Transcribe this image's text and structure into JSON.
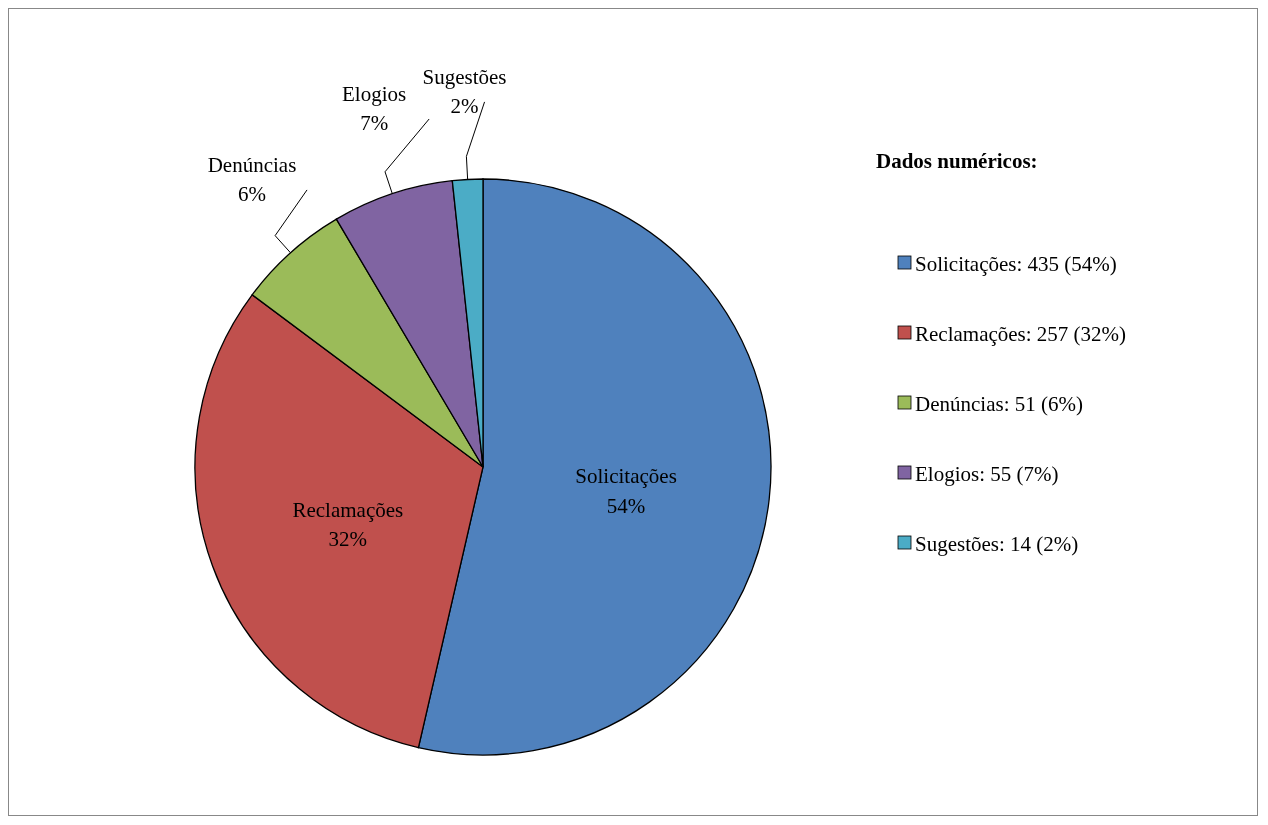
{
  "chart_data": [
    {
      "type": "pie",
      "categories": [
        "Solicitações",
        "Reclamações",
        "Denúncias",
        "Elogios",
        "Sugestões"
      ],
      "values": [
        53.6,
        31.6,
        6.3,
        6.8,
        1.7
      ],
      "value_labels": [
        "54%",
        "32%",
        "6%",
        "7%",
        "2%"
      ],
      "colors": [
        "#4f81bd",
        "#c0504d",
        "#9bbb59",
        "#8064a2",
        "#4bacc6"
      ]
    },
    {
      "type": "other",
      "title": "Dados numéricos:",
      "annotations": [
        "Solicitações: 435 (54%)",
        "Reclamações: 257 (32%)",
        "Denúncias: 51 (6%)",
        "Elogios: 55 (7%)",
        "Sugestões: 14 (2%)"
      ]
    }
  ]
}
